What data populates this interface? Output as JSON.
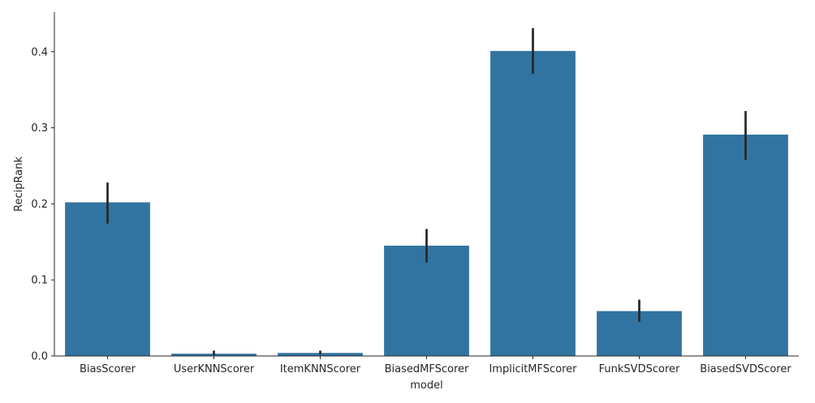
{
  "chart_data": {
    "type": "bar",
    "title": "",
    "xlabel": "model",
    "ylabel": "RecipRank",
    "categories": [
      "BiasScorer",
      "UserKNNScorer",
      "ItemKNNScorer",
      "BiasedMFScorer",
      "ImplicitMFScorer",
      "FunkSVDScorer",
      "BiasedSVDScorer"
    ],
    "values": [
      0.202,
      0.003,
      0.004,
      0.145,
      0.401,
      0.059,
      0.291
    ],
    "error_low": [
      0.174,
      0.001,
      0.002,
      0.123,
      0.371,
      0.045,
      0.258
    ],
    "error_high": [
      0.228,
      0.007,
      0.007,
      0.167,
      0.431,
      0.074,
      0.322
    ],
    "ylim": [
      0,
      0.452
    ],
    "yticks": [
      "0.0",
      "0.1",
      "0.2",
      "0.3",
      "0.4"
    ],
    "grid": false,
    "bar_color": "#3274a1",
    "error_color": "#262626",
    "axis_color": "#262626"
  }
}
